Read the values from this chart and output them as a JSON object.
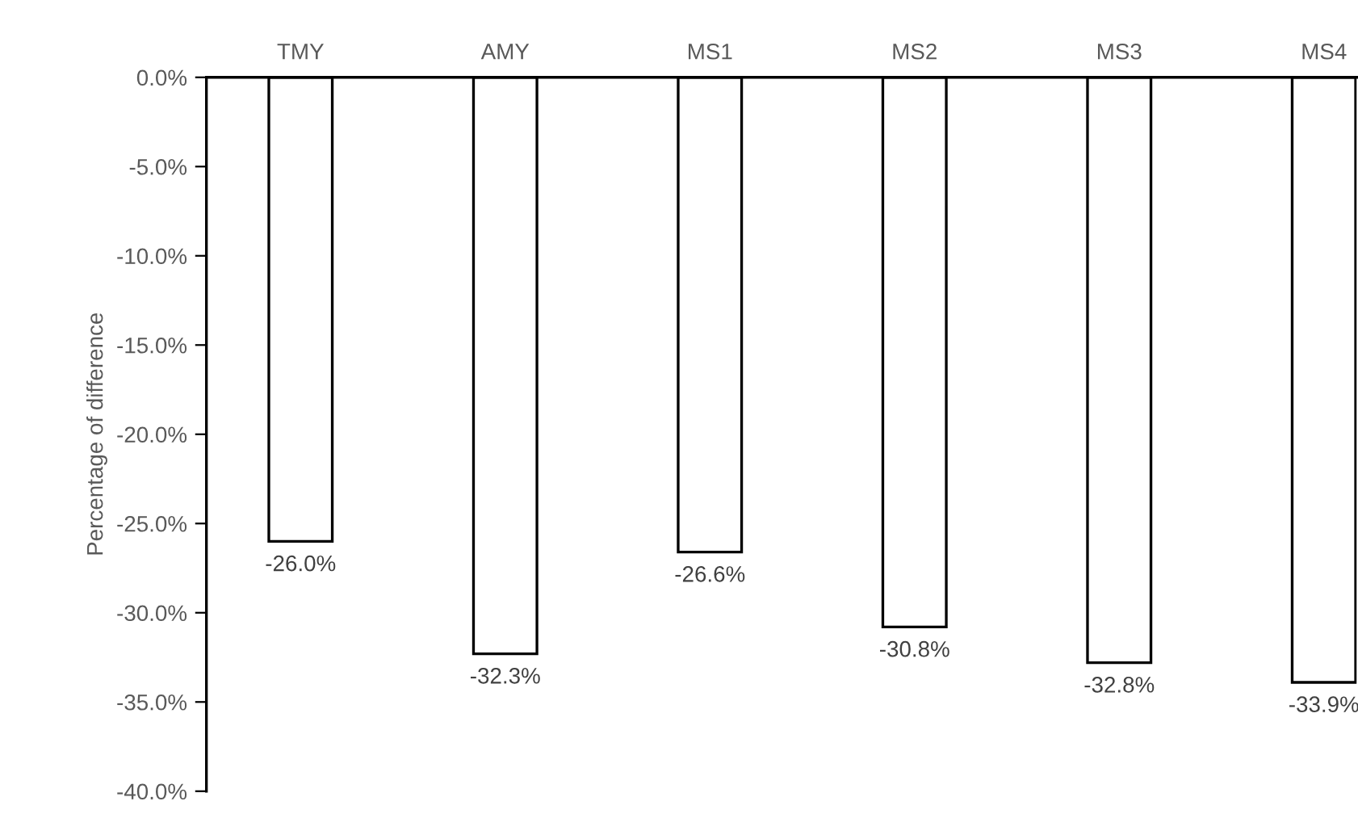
{
  "chart_data": {
    "type": "bar",
    "ylabel": "Percentage of difference",
    "categories": [
      "TMY",
      "AMY",
      "MS1",
      "MS2",
      "MS3",
      "MS4"
    ],
    "values": [
      -26.0,
      -32.3,
      -26.6,
      -30.8,
      -32.8,
      -33.9
    ],
    "value_labels": [
      "-26.0%",
      "-32.3%",
      "-26.6%",
      "-30.8%",
      "-32.8%",
      "-33.9%"
    ],
    "color": "#ffffff",
    "ylim": [
      -40,
      0
    ],
    "yticks": [
      {
        "value": 0,
        "label": "0.0%"
      },
      {
        "value": -5,
        "label": "-5.0%"
      },
      {
        "value": -10,
        "label": "-10.0%"
      },
      {
        "value": -15,
        "label": "-15.0%"
      },
      {
        "value": -20,
        "label": "-20.0%"
      },
      {
        "value": -25,
        "label": "-25.0%"
      },
      {
        "value": -30,
        "label": "-30.0%"
      },
      {
        "value": -35,
        "label": "-35.0%"
      },
      {
        "value": -40,
        "label": "-40.0%"
      }
    ],
    "grid": false,
    "legend": false
  }
}
